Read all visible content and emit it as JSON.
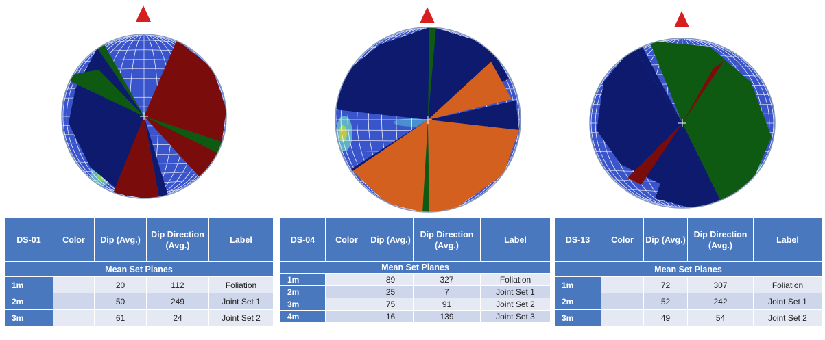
{
  "colors": {
    "sphere": "#3a55cc",
    "grid": "#ffffff",
    "header": "#4a78bf",
    "north_marker": "#d61f1f",
    "navy": "#0e1a6e",
    "dark_red": "#7a0c0c",
    "dark_green": "#0f5a12",
    "orange": "#d4601f"
  },
  "north_marker_icon": "north-arrow-icon",
  "table_header": {
    "color": "Color",
    "dip": "Dip (Avg.)",
    "dip_direction": "Dip Direction (Avg.)",
    "label": "Label",
    "section": "Mean Set Planes"
  },
  "panels": [
    {
      "id": "DS-01",
      "rows": [
        {
          "set": "1m",
          "dip": "20",
          "dip_direction": "112",
          "label": "Foliation"
        },
        {
          "set": "2m",
          "dip": "50",
          "dip_direction": "249",
          "label": "Joint Set 1"
        },
        {
          "set": "3m",
          "dip": "61",
          "dip_direction": "24",
          "label": "Joint Set 2"
        }
      ]
    },
    {
      "id": "DS-04",
      "rows": [
        {
          "set": "1m",
          "dip": "89",
          "dip_direction": "327",
          "label": "Foliation"
        },
        {
          "set": "2m",
          "dip": "25",
          "dip_direction": "7",
          "label": "Joint Set 1"
        },
        {
          "set": "3m",
          "dip": "75",
          "dip_direction": "91",
          "label": "Joint Set 2"
        },
        {
          "set": "4m",
          "dip": "16",
          "dip_direction": "139",
          "label": "Joint Set 3"
        }
      ]
    },
    {
      "id": "DS-13",
      "rows": [
        {
          "set": "1m",
          "dip": "72",
          "dip_direction": "307",
          "label": "Foliation"
        },
        {
          "set": "2m",
          "dip": "52",
          "dip_direction": "242",
          "label": "Joint Set 1"
        },
        {
          "set": "3m",
          "dip": "49",
          "dip_direction": "54",
          "label": "Joint Set 2"
        }
      ]
    }
  ]
}
